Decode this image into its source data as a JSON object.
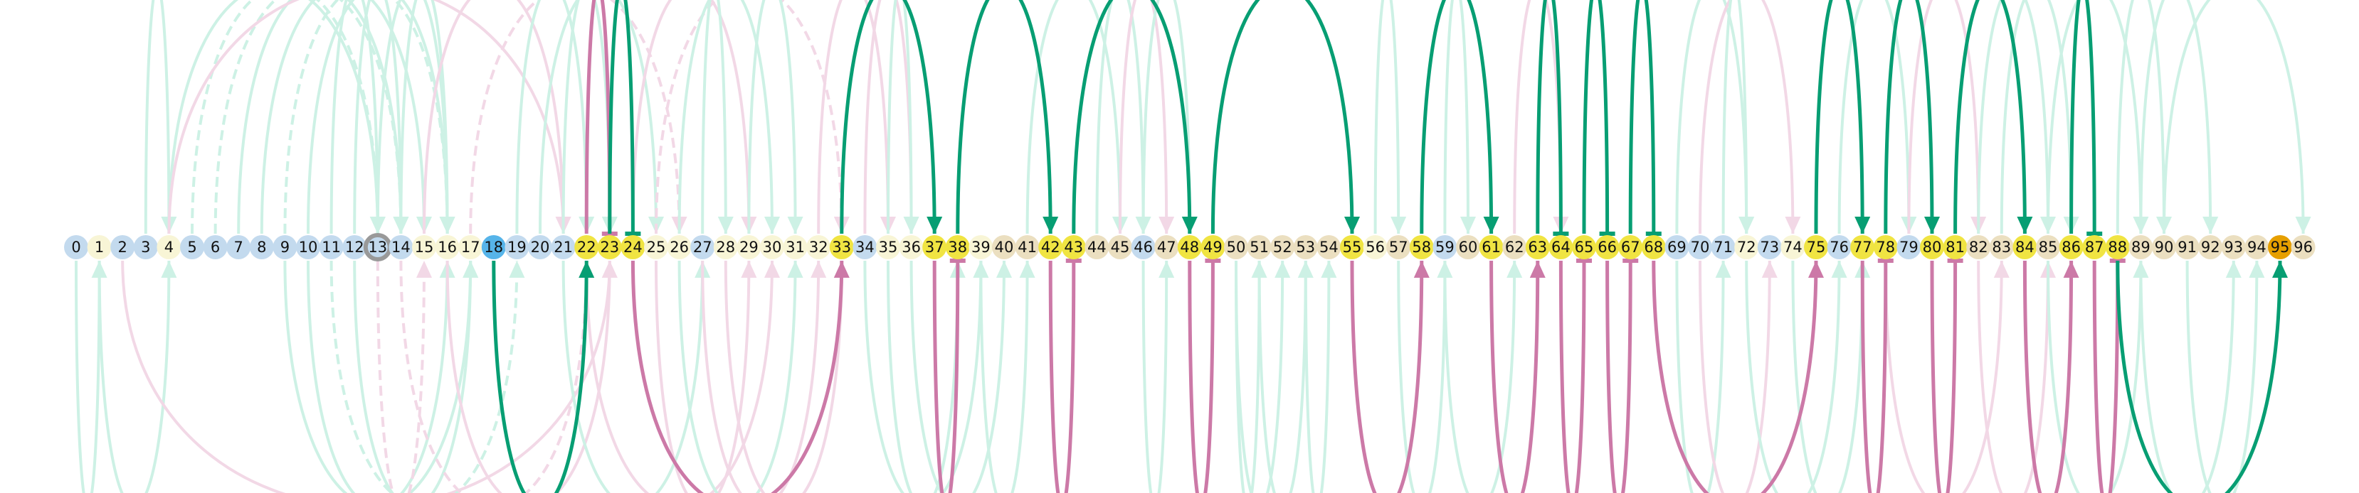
{
  "colors": {
    "bg": "#ffffff",
    "green": "#079e73",
    "pink": "#cc79a7",
    "green_faint": "#cdf1e5",
    "pink_faint": "#f2d8e6",
    "ring": "#999999",
    "fill_blue": "#c3daee",
    "fill_cream": "#f8f5d6",
    "fill_yellow": "#f0e442",
    "fill_tan": "#ebdfc0",
    "fill_sky": "#56b4e9",
    "fill_orange": "#e69f00"
  },
  "nodes": [
    {
      "label": "0",
      "fill": "blue"
    },
    {
      "label": "1",
      "fill": "cream"
    },
    {
      "label": "2",
      "fill": "blue"
    },
    {
      "label": "3",
      "fill": "blue"
    },
    {
      "label": "4",
      "fill": "cream"
    },
    {
      "label": "5",
      "fill": "blue"
    },
    {
      "label": "6",
      "fill": "blue"
    },
    {
      "label": "7",
      "fill": "blue"
    },
    {
      "label": "8",
      "fill": "blue"
    },
    {
      "label": "9",
      "fill": "blue"
    },
    {
      "label": "10",
      "fill": "blue"
    },
    {
      "label": "11",
      "fill": "blue"
    },
    {
      "label": "12",
      "fill": "blue"
    },
    {
      "label": "13",
      "fill": "blue",
      "ring": true
    },
    {
      "label": "14",
      "fill": "blue"
    },
    {
      "label": "15",
      "fill": "cream"
    },
    {
      "label": "16",
      "fill": "cream"
    },
    {
      "label": "17",
      "fill": "cream"
    },
    {
      "label": "18",
      "fill": "sky"
    },
    {
      "label": "19",
      "fill": "blue"
    },
    {
      "label": "20",
      "fill": "blue"
    },
    {
      "label": "21",
      "fill": "blue"
    },
    {
      "label": "22",
      "fill": "yellow"
    },
    {
      "label": "23",
      "fill": "yellow"
    },
    {
      "label": "24",
      "fill": "yellow"
    },
    {
      "label": "25",
      "fill": "cream"
    },
    {
      "label": "26",
      "fill": "cream"
    },
    {
      "label": "27",
      "fill": "blue"
    },
    {
      "label": "28",
      "fill": "cream"
    },
    {
      "label": "29",
      "fill": "cream"
    },
    {
      "label": "30",
      "fill": "cream"
    },
    {
      "label": "31",
      "fill": "cream"
    },
    {
      "label": "32",
      "fill": "cream"
    },
    {
      "label": "33",
      "fill": "yellow"
    },
    {
      "label": "34",
      "fill": "blue"
    },
    {
      "label": "35",
      "fill": "cream"
    },
    {
      "label": "36",
      "fill": "cream"
    },
    {
      "label": "37",
      "fill": "yellow"
    },
    {
      "label": "38",
      "fill": "yellow"
    },
    {
      "label": "39",
      "fill": "cream"
    },
    {
      "label": "40",
      "fill": "tan"
    },
    {
      "label": "41",
      "fill": "tan"
    },
    {
      "label": "42",
      "fill": "yellow"
    },
    {
      "label": "43",
      "fill": "yellow"
    },
    {
      "label": "44",
      "fill": "tan"
    },
    {
      "label": "45",
      "fill": "tan"
    },
    {
      "label": "46",
      "fill": "blue"
    },
    {
      "label": "47",
      "fill": "tan"
    },
    {
      "label": "48",
      "fill": "yellow"
    },
    {
      "label": "49",
      "fill": "yellow"
    },
    {
      "label": "50",
      "fill": "tan"
    },
    {
      "label": "51",
      "fill": "tan"
    },
    {
      "label": "52",
      "fill": "tan"
    },
    {
      "label": "53",
      "fill": "tan"
    },
    {
      "label": "54",
      "fill": "tan"
    },
    {
      "label": "55",
      "fill": "yellow"
    },
    {
      "label": "56",
      "fill": "cream"
    },
    {
      "label": "57",
      "fill": "tan"
    },
    {
      "label": "58",
      "fill": "yellow"
    },
    {
      "label": "59",
      "fill": "blue"
    },
    {
      "label": "60",
      "fill": "tan"
    },
    {
      "label": "61",
      "fill": "yellow"
    },
    {
      "label": "62",
      "fill": "tan"
    },
    {
      "label": "63",
      "fill": "yellow"
    },
    {
      "label": "64",
      "fill": "yellow"
    },
    {
      "label": "65",
      "fill": "yellow"
    },
    {
      "label": "66",
      "fill": "yellow"
    },
    {
      "label": "67",
      "fill": "yellow"
    },
    {
      "label": "68",
      "fill": "yellow"
    },
    {
      "label": "69",
      "fill": "blue"
    },
    {
      "label": "70",
      "fill": "blue"
    },
    {
      "label": "71",
      "fill": "blue"
    },
    {
      "label": "72",
      "fill": "cream"
    },
    {
      "label": "73",
      "fill": "blue"
    },
    {
      "label": "74",
      "fill": "cream"
    },
    {
      "label": "75",
      "fill": "yellow"
    },
    {
      "label": "76",
      "fill": "blue"
    },
    {
      "label": "77",
      "fill": "yellow"
    },
    {
      "label": "78",
      "fill": "yellow"
    },
    {
      "label": "79",
      "fill": "blue"
    },
    {
      "label": "80",
      "fill": "yellow"
    },
    {
      "label": "81",
      "fill": "yellow"
    },
    {
      "label": "82",
      "fill": "tan"
    },
    {
      "label": "83",
      "fill": "tan"
    },
    {
      "label": "84",
      "fill": "yellow"
    },
    {
      "label": "85",
      "fill": "tan"
    },
    {
      "label": "86",
      "fill": "yellow"
    },
    {
      "label": "87",
      "fill": "yellow"
    },
    {
      "label": "88",
      "fill": "yellow"
    },
    {
      "label": "89",
      "fill": "tan"
    },
    {
      "label": "90",
      "fill": "tan"
    },
    {
      "label": "91",
      "fill": "tan"
    },
    {
      "label": "92",
      "fill": "tan"
    },
    {
      "label": "93",
      "fill": "tan"
    },
    {
      "label": "94",
      "fill": "tan"
    },
    {
      "label": "95",
      "fill": "orange"
    },
    {
      "label": "96",
      "fill": "tan"
    }
  ],
  "edges": [
    {
      "from": 33,
      "to": 37,
      "side": "top",
      "color": "green",
      "head": "arrow"
    },
    {
      "from": 38,
      "to": 42,
      "side": "top",
      "color": "green",
      "head": "arrow"
    },
    {
      "from": 43,
      "to": 48,
      "side": "top",
      "color": "green",
      "head": "arrow"
    },
    {
      "from": 49,
      "to": 55,
      "side": "top",
      "color": "green",
      "head": "arrow"
    },
    {
      "from": 58,
      "to": 61,
      "side": "top",
      "color": "green",
      "head": "arrow"
    },
    {
      "from": 63,
      "to": 64,
      "side": "top",
      "color": "green",
      "head": "bar"
    },
    {
      "from": 65,
      "to": 66,
      "side": "top",
      "color": "green",
      "head": "bar"
    },
    {
      "from": 67,
      "to": 68,
      "side": "top",
      "color": "green",
      "head": "bar"
    },
    {
      "from": 75,
      "to": 77,
      "side": "top",
      "color": "green",
      "head": "arrow"
    },
    {
      "from": 78,
      "to": 80,
      "side": "top",
      "color": "green",
      "head": "arrow"
    },
    {
      "from": 81,
      "to": 84,
      "side": "top",
      "color": "green",
      "head": "arrow"
    },
    {
      "from": 86,
      "to": 87,
      "side": "top",
      "color": "green",
      "head": "bar"
    },
    {
      "from": 22,
      "to": 23,
      "side": "top",
      "color": "pink",
      "head": "bar"
    },
    {
      "from": 23,
      "to": 24,
      "side": "top",
      "color": "green",
      "head": "bar"
    },
    {
      "from": 18,
      "to": 22,
      "side": "bottom",
      "color": "green",
      "head": "arrow"
    },
    {
      "from": 24,
      "to": 33,
      "side": "bottom",
      "color": "pink",
      "head": "arrow"
    },
    {
      "from": 37,
      "to": 38,
      "side": "bottom",
      "color": "pink",
      "head": "bar"
    },
    {
      "from": 42,
      "to": 43,
      "side": "bottom",
      "color": "pink",
      "head": "bar"
    },
    {
      "from": 48,
      "to": 49,
      "side": "bottom",
      "color": "pink",
      "head": "bar"
    },
    {
      "from": 55,
      "to": 58,
      "side": "bottom",
      "color": "pink",
      "head": "arrow"
    },
    {
      "from": 61,
      "to": 63,
      "side": "bottom",
      "color": "pink",
      "head": "arrow"
    },
    {
      "from": 64,
      "to": 65,
      "side": "bottom",
      "color": "pink",
      "head": "bar"
    },
    {
      "from": 66,
      "to": 67,
      "side": "bottom",
      "color": "pink",
      "head": "bar"
    },
    {
      "from": 68,
      "to": 75,
      "side": "bottom",
      "color": "pink",
      "head": "arrow"
    },
    {
      "from": 77,
      "to": 78,
      "side": "bottom",
      "color": "pink",
      "head": "bar"
    },
    {
      "from": 80,
      "to": 81,
      "side": "bottom",
      "color": "pink",
      "head": "bar"
    },
    {
      "from": 84,
      "to": 86,
      "side": "bottom",
      "color": "pink",
      "head": "arrow"
    },
    {
      "from": 87,
      "to": 88,
      "side": "bottom",
      "color": "pink",
      "head": "bar"
    },
    {
      "from": 88,
      "to": 95,
      "side": "bottom",
      "color": "green",
      "head": "arrow"
    }
  ],
  "faint_edges": [
    {
      "from": 3,
      "to": 4,
      "side": "top",
      "color": "green"
    },
    {
      "from": 4,
      "to": 13,
      "side": "top",
      "color": "green"
    },
    {
      "from": 5,
      "to": 13,
      "side": "top",
      "color": "green",
      "dashed": true
    },
    {
      "from": 6,
      "to": 14,
      "side": "top",
      "color": "green",
      "dashed": true
    },
    {
      "from": 7,
      "to": 14,
      "side": "top",
      "color": "green"
    },
    {
      "from": 8,
      "to": 15,
      "side": "top",
      "color": "green"
    },
    {
      "from": 9,
      "to": 16,
      "side": "top",
      "color": "green",
      "dashed": true
    },
    {
      "from": 10,
      "to": 16,
      "side": "top",
      "color": "green"
    },
    {
      "from": 11,
      "to": 13,
      "side": "top",
      "color": "green"
    },
    {
      "from": 12,
      "to": 14,
      "side": "top",
      "color": "green"
    },
    {
      "from": 13,
      "to": 16,
      "side": "top",
      "color": "green"
    },
    {
      "from": 14,
      "to": 16,
      "side": "top",
      "color": "green"
    },
    {
      "from": 15,
      "to": 21,
      "side": "top",
      "color": "pink"
    },
    {
      "from": 4,
      "to": 21,
      "side": "top",
      "color": "pink"
    },
    {
      "from": 17,
      "to": 26,
      "side": "top",
      "color": "pink",
      "dashed": true
    },
    {
      "from": 19,
      "to": 22,
      "side": "top",
      "color": "green"
    },
    {
      "from": 20,
      "to": 25,
      "side": "top",
      "color": "green"
    },
    {
      "from": 21,
      "to": 23,
      "side": "top",
      "color": "green"
    },
    {
      "from": 24,
      "to": 29,
      "side": "top",
      "color": "pink"
    },
    {
      "from": 25,
      "to": 33,
      "side": "top",
      "color": "pink",
      "dashed": true
    },
    {
      "from": 26,
      "to": 30,
      "side": "top",
      "color": "green"
    },
    {
      "from": 27,
      "to": 28,
      "side": "top",
      "color": "green"
    },
    {
      "from": 29,
      "to": 31,
      "side": "top",
      "color": "green"
    },
    {
      "from": 32,
      "to": 35,
      "side": "top",
      "color": "pink"
    },
    {
      "from": 34,
      "to": 36,
      "side": "top",
      "color": "pink"
    },
    {
      "from": 35,
      "to": 36,
      "side": "top",
      "color": "green"
    },
    {
      "from": 41,
      "to": 45,
      "side": "top",
      "color": "green"
    },
    {
      "from": 44,
      "to": 46,
      "side": "top",
      "color": "green"
    },
    {
      "from": 45,
      "to": 47,
      "side": "top",
      "color": "pink"
    },
    {
      "from": 46,
      "to": 48,
      "side": "top",
      "color": "green"
    },
    {
      "from": 56,
      "to": 57,
      "side": "top",
      "color": "green"
    },
    {
      "from": 59,
      "to": 60,
      "side": "top",
      "color": "green"
    },
    {
      "from": 62,
      "to": 64,
      "side": "top",
      "color": "pink"
    },
    {
      "from": 69,
      "to": 72,
      "side": "top",
      "color": "green"
    },
    {
      "from": 70,
      "to": 74,
      "side": "top",
      "color": "pink"
    },
    {
      "from": 71,
      "to": 72,
      "side": "top",
      "color": "green"
    },
    {
      "from": 76,
      "to": 79,
      "side": "top",
      "color": "green"
    },
    {
      "from": 79,
      "to": 82,
      "side": "top",
      "color": "pink"
    },
    {
      "from": 82,
      "to": 85,
      "side": "top",
      "color": "green"
    },
    {
      "from": 83,
      "to": 86,
      "side": "top",
      "color": "green"
    },
    {
      "from": 85,
      "to": 89,
      "side": "top",
      "color": "green"
    },
    {
      "from": 88,
      "to": 90,
      "side": "top",
      "color": "green"
    },
    {
      "from": 89,
      "to": 92,
      "side": "top",
      "color": "green"
    },
    {
      "from": 90,
      "to": 96,
      "side": "top",
      "color": "green"
    },
    {
      "from": 0,
      "to": 1,
      "side": "bottom",
      "color": "green"
    },
    {
      "from": 1,
      "to": 4,
      "side": "bottom",
      "color": "green"
    },
    {
      "from": 2,
      "to": 23,
      "side": "bottom",
      "color": "pink"
    },
    {
      "from": 9,
      "to": 17,
      "side": "bottom",
      "color": "green"
    },
    {
      "from": 10,
      "to": 16,
      "side": "bottom",
      "color": "green"
    },
    {
      "from": 11,
      "to": 19,
      "side": "bottom",
      "color": "green",
      "dashed": true
    },
    {
      "from": 12,
      "to": 17,
      "side": "bottom",
      "color": "green"
    },
    {
      "from": 13,
      "to": 15,
      "side": "bottom",
      "color": "pink",
      "dashed": true
    },
    {
      "from": 14,
      "to": 22,
      "side": "bottom",
      "color": "pink",
      "dashed": true
    },
    {
      "from": 16,
      "to": 23,
      "side": "bottom",
      "color": "pink"
    },
    {
      "from": 21,
      "to": 27,
      "side": "bottom",
      "color": "green"
    },
    {
      "from": 22,
      "to": 30,
      "side": "bottom",
      "color": "pink"
    },
    {
      "from": 25,
      "to": 29,
      "side": "bottom",
      "color": "pink"
    },
    {
      "from": 26,
      "to": 31,
      "side": "bottom",
      "color": "green"
    },
    {
      "from": 27,
      "to": 32,
      "side": "bottom",
      "color": "pink"
    },
    {
      "from": 28,
      "to": 33,
      "side": "bottom",
      "color": "pink"
    },
    {
      "from": 34,
      "to": 39,
      "side": "bottom",
      "color": "green"
    },
    {
      "from": 35,
      "to": 38,
      "side": "bottom",
      "color": "green"
    },
    {
      "from": 36,
      "to": 40,
      "side": "bottom",
      "color": "green"
    },
    {
      "from": 39,
      "to": 41,
      "side": "bottom",
      "color": "green"
    },
    {
      "from": 46,
      "to": 47,
      "side": "bottom",
      "color": "green"
    },
    {
      "from": 50,
      "to": 51,
      "side": "bottom",
      "color": "green"
    },
    {
      "from": 50,
      "to": 52,
      "side": "bottom",
      "color": "green"
    },
    {
      "from": 51,
      "to": 53,
      "side": "bottom",
      "color": "green"
    },
    {
      "from": 53,
      "to": 54,
      "side": "bottom",
      "color": "green"
    },
    {
      "from": 57,
      "to": 59,
      "side": "bottom",
      "color": "green"
    },
    {
      "from": 59,
      "to": 62,
      "side": "bottom",
      "color": "green"
    },
    {
      "from": 69,
      "to": 71,
      "side": "bottom",
      "color": "green"
    },
    {
      "from": 70,
      "to": 73,
      "side": "bottom",
      "color": "pink"
    },
    {
      "from": 72,
      "to": 76,
      "side": "bottom",
      "color": "green"
    },
    {
      "from": 74,
      "to": 77,
      "side": "bottom",
      "color": "green"
    },
    {
      "from": 78,
      "to": 83,
      "side": "bottom",
      "color": "pink"
    },
    {
      "from": 82,
      "to": 85,
      "side": "bottom",
      "color": "pink"
    },
    {
      "from": 85,
      "to": 89,
      "side": "bottom",
      "color": "green"
    },
    {
      "from": 89,
      "to": 93,
      "side": "bottom",
      "color": "green"
    },
    {
      "from": 91,
      "to": 94,
      "side": "bottom",
      "color": "green"
    }
  ]
}
